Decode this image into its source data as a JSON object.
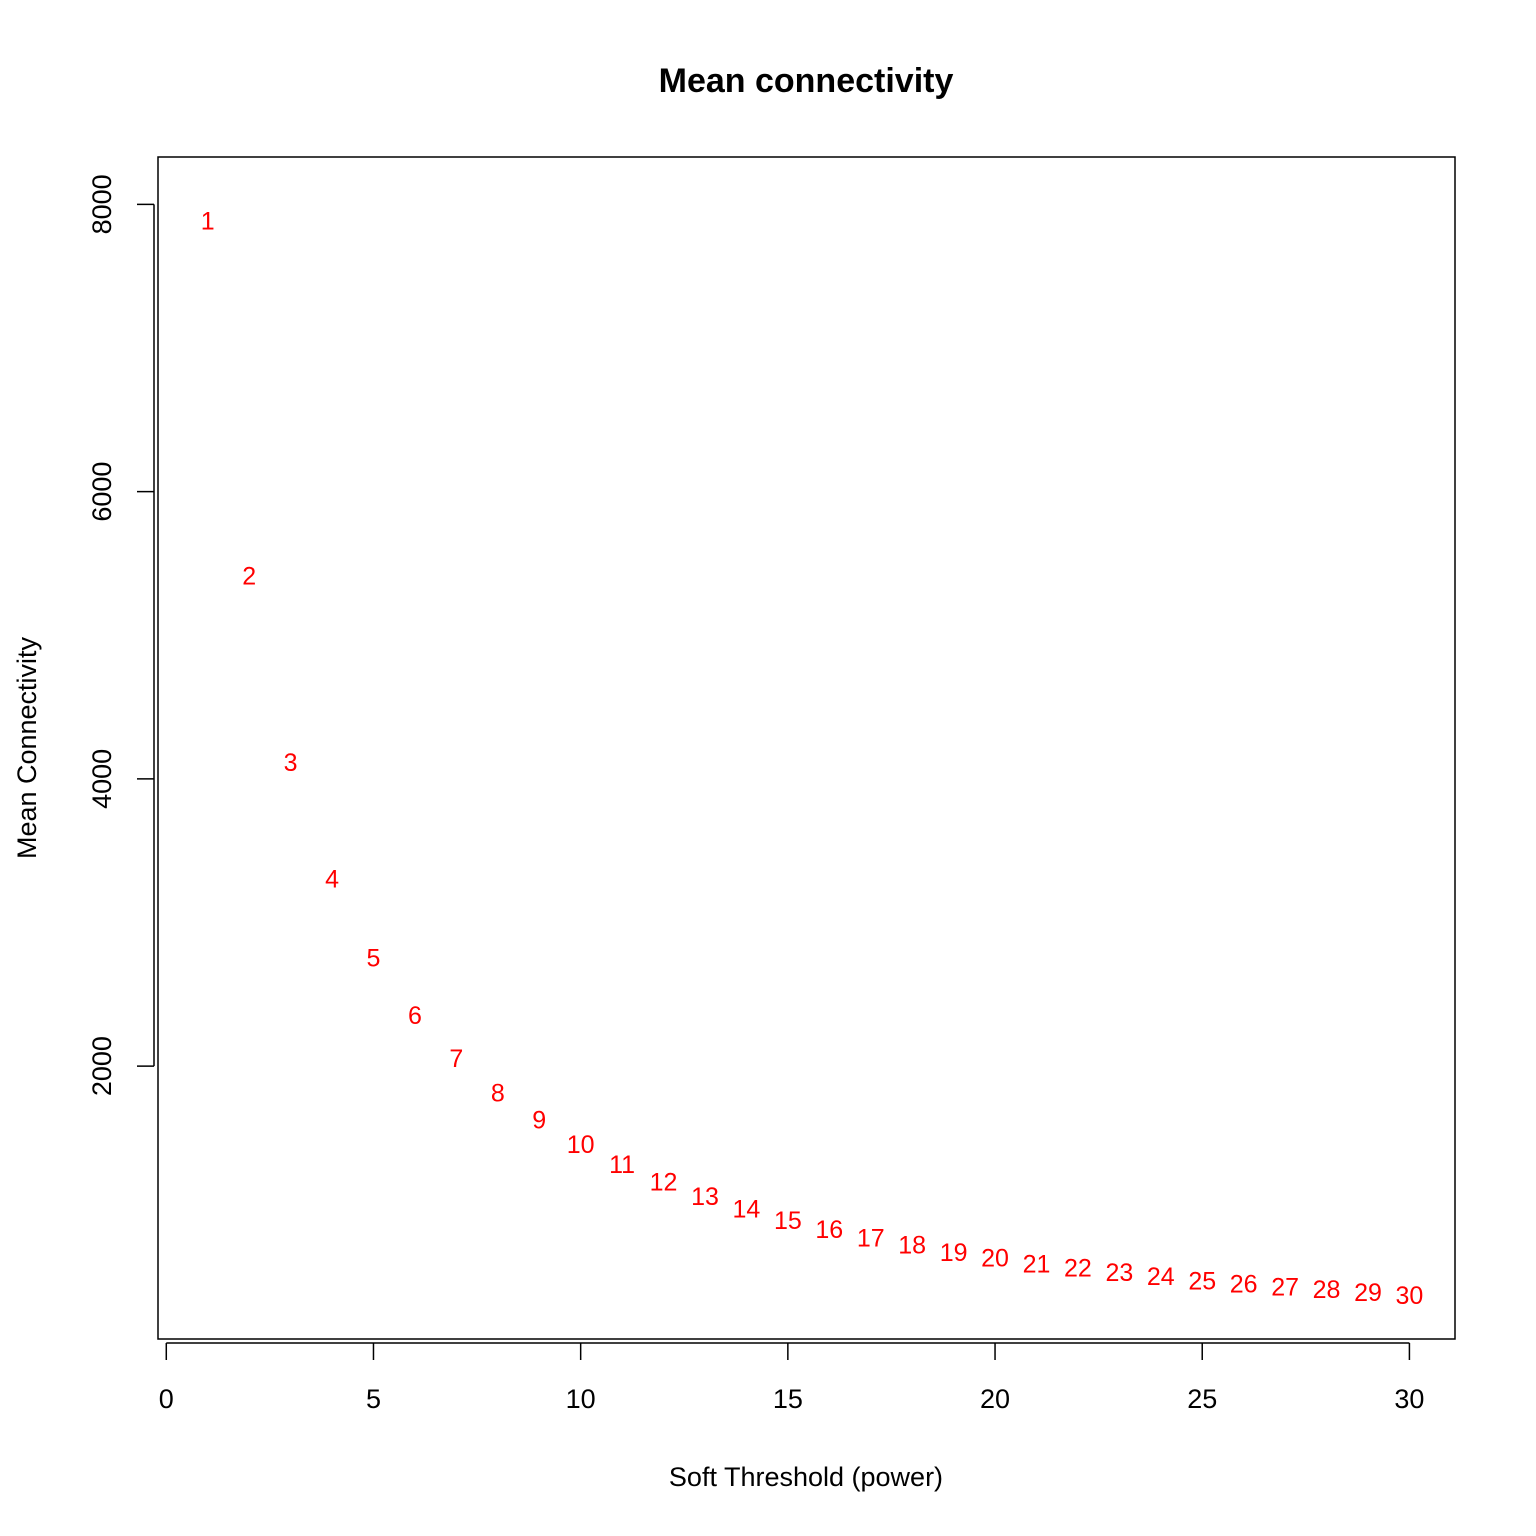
{
  "chart_data": {
    "type": "scatter",
    "title": "Mean connectivity",
    "xlabel": "Soft Threshold (power)",
    "ylabel": "Mean Connectivity",
    "xlim": [
      -0.2,
      31.1
    ],
    "ylim": [
      100,
      8330
    ],
    "x_ticks": [
      0,
      5,
      10,
      15,
      20,
      25,
      30
    ],
    "y_ticks": [
      2000,
      4000,
      6000,
      8000
    ],
    "point_color": "#ff0000",
    "marker": "text-label",
    "series": [
      {
        "x": [
          1,
          2,
          3,
          4,
          5,
          6,
          7,
          8,
          9,
          10,
          11,
          12,
          13,
          14,
          15,
          16,
          17,
          18,
          19,
          20,
          21,
          22,
          23,
          24,
          25,
          26,
          27,
          28,
          29,
          30
        ],
        "y": [
          7880,
          5410,
          4110,
          3300,
          2750,
          2350,
          2050,
          1810,
          1620,
          1450,
          1310,
          1190,
          1090,
          1000,
          920,
          860,
          800,
          750,
          700,
          660,
          620,
          590,
          560,
          530,
          500,
          480,
          460,
          440,
          420,
          400
        ],
        "labels": [
          "1",
          "2",
          "3",
          "4",
          "5",
          "6",
          "7",
          "8",
          "9",
          "10",
          "11",
          "12",
          "13",
          "14",
          "15",
          "16",
          "17",
          "18",
          "19",
          "20",
          "21",
          "22",
          "23",
          "24",
          "25",
          "26",
          "27",
          "28",
          "29",
          "30"
        ]
      }
    ]
  }
}
